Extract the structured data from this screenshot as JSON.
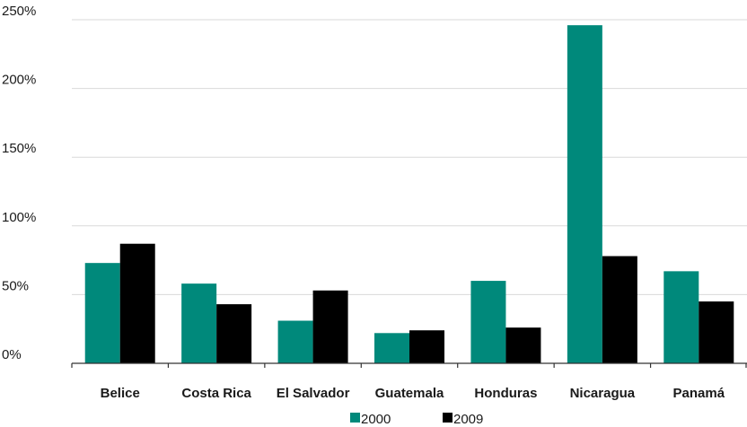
{
  "chart_data": {
    "type": "bar",
    "categories": [
      "Belice",
      "Costa Rica",
      "El Salvador",
      "Guatemala",
      "Honduras",
      "Nicaragua",
      "Panamá"
    ],
    "series": [
      {
        "name": "2000",
        "color": "#00897b",
        "values": [
          73,
          58,
          31,
          22,
          60,
          246,
          67
        ]
      },
      {
        "name": "2009",
        "color": "#000000",
        "values": [
          87,
          43,
          53,
          24,
          26,
          78,
          45
        ]
      }
    ],
    "y_ticks": [
      0,
      50,
      100,
      150,
      200,
      250
    ],
    "y_tick_labels": [
      "0%",
      "50%",
      "100%",
      "150%",
      "200%",
      "250%"
    ],
    "ylim": [
      0,
      250
    ],
    "grid": true,
    "legend_position": "bottom-center",
    "title": "",
    "xlabel": "",
    "ylabel": ""
  }
}
